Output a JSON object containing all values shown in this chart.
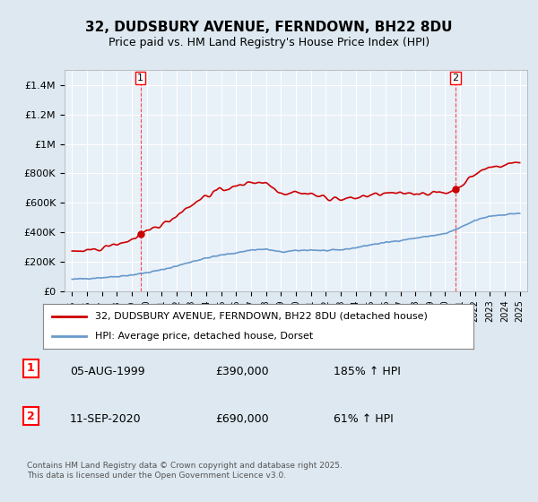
{
  "title1": "32, DUDSBURY AVENUE, FERNDOWN, BH22 8DU",
  "title2": "Price paid vs. HM Land Registry's House Price Index (HPI)",
  "bg_color": "#dde8f0",
  "plot_bg_color": "#e8f0f8",
  "grid_color": "#ffffff",
  "red_color": "#cc0000",
  "blue_color": "#6699cc",
  "sale1_date_num": 1999.59,
  "sale1_price": 390000,
  "sale1_label": "1",
  "sale2_date_num": 2020.69,
  "sale2_price": 690000,
  "sale2_label": "2",
  "ylim_min": 0,
  "ylim_max": 1500000,
  "yticks": [
    0,
    200000,
    400000,
    600000,
    800000,
    1000000,
    1200000,
    1400000
  ],
  "ytick_labels": [
    "£0",
    "£200K",
    "£400K",
    "£600K",
    "£800K",
    "£1M",
    "£1.2M",
    "£1.4M"
  ],
  "xlim_min": 1994.5,
  "xlim_max": 2025.5,
  "footer": "Contains HM Land Registry data © Crown copyright and database right 2025.\nThis data is licensed under the Open Government Licence v3.0.",
  "legend_line1": "32, DUDSBURY AVENUE, FERNDOWN, BH22 8DU (detached house)",
  "legend_line2": "HPI: Average price, detached house, Dorset",
  "ann1_date": "05-AUG-1999",
  "ann1_price": "£390,000",
  "ann1_hpi": "185% ↑ HPI",
  "ann2_date": "11-SEP-2020",
  "ann2_price": "£690,000",
  "ann2_hpi": "61% ↑ HPI"
}
